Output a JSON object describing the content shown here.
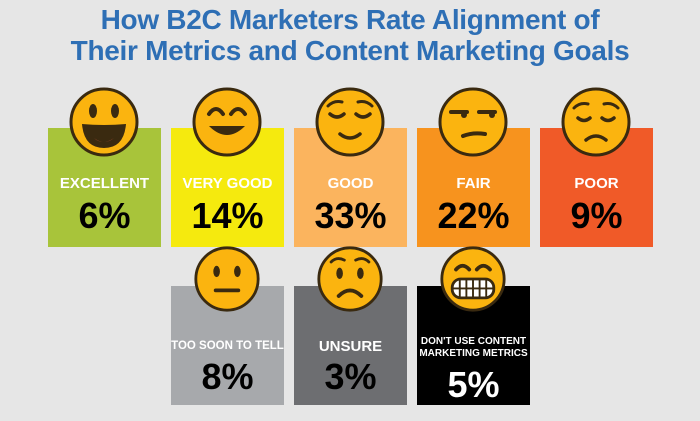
{
  "title_line1": "How B2C Marketers Rate Alignment of",
  "title_line2": "Their Metrics and Content Marketing Goals",
  "colors": {
    "title": "#2e6fb5",
    "excellent": "#a8c43a",
    "very_good": "#f5ea0e",
    "good": "#fbb45e",
    "fair": "#f7931e",
    "poor": "#f05a28",
    "too_soon": "#a7a9ac",
    "unsure": "#6d6e71",
    "dont_use": "#000000",
    "face": "#fbb40f"
  },
  "icons": {
    "excellent": "grinning-face-icon",
    "very_good": "smiling-eyes-face-icon",
    "good": "relieved-face-icon",
    "fair": "unamused-face-icon",
    "poor": "pensive-face-icon",
    "too_soon": "neutral-face-icon",
    "unsure": "worried-face-icon",
    "dont_use": "grimacing-face-icon"
  },
  "chart_data": {
    "type": "bar",
    "title": "How B2C Marketers Rate Alignment of Their Metrics and Content Marketing Goals",
    "categories": [
      "EXCELLENT",
      "VERY GOOD",
      "GOOD",
      "FAIR",
      "POOR",
      "TOO SOON TO TELL",
      "UNSURE",
      "DON'T USE CONTENT MARKETING METRICS"
    ],
    "values": [
      6,
      14,
      33,
      22,
      9,
      8,
      3,
      5
    ],
    "value_labels": [
      "6%",
      "14%",
      "33%",
      "22%",
      "9%",
      "8%",
      "3%",
      "5%"
    ],
    "unit": "%"
  },
  "cards": {
    "excellent": {
      "label": "EXCELLENT",
      "value": "6%"
    },
    "very_good": {
      "label": "VERY GOOD",
      "value": "14%"
    },
    "good": {
      "label": "GOOD",
      "value": "33%"
    },
    "fair": {
      "label": "FAIR",
      "value": "22%"
    },
    "poor": {
      "label": "POOR",
      "value": "9%"
    },
    "too_soon": {
      "label": "TOO SOON TO TELL",
      "value": "8%"
    },
    "unsure": {
      "label": "UNSURE",
      "value": "3%"
    },
    "dont_use": {
      "label_line1": "DON'T USE CONTENT",
      "label_line2": "MARKETING METRICS",
      "value": "5%"
    }
  }
}
